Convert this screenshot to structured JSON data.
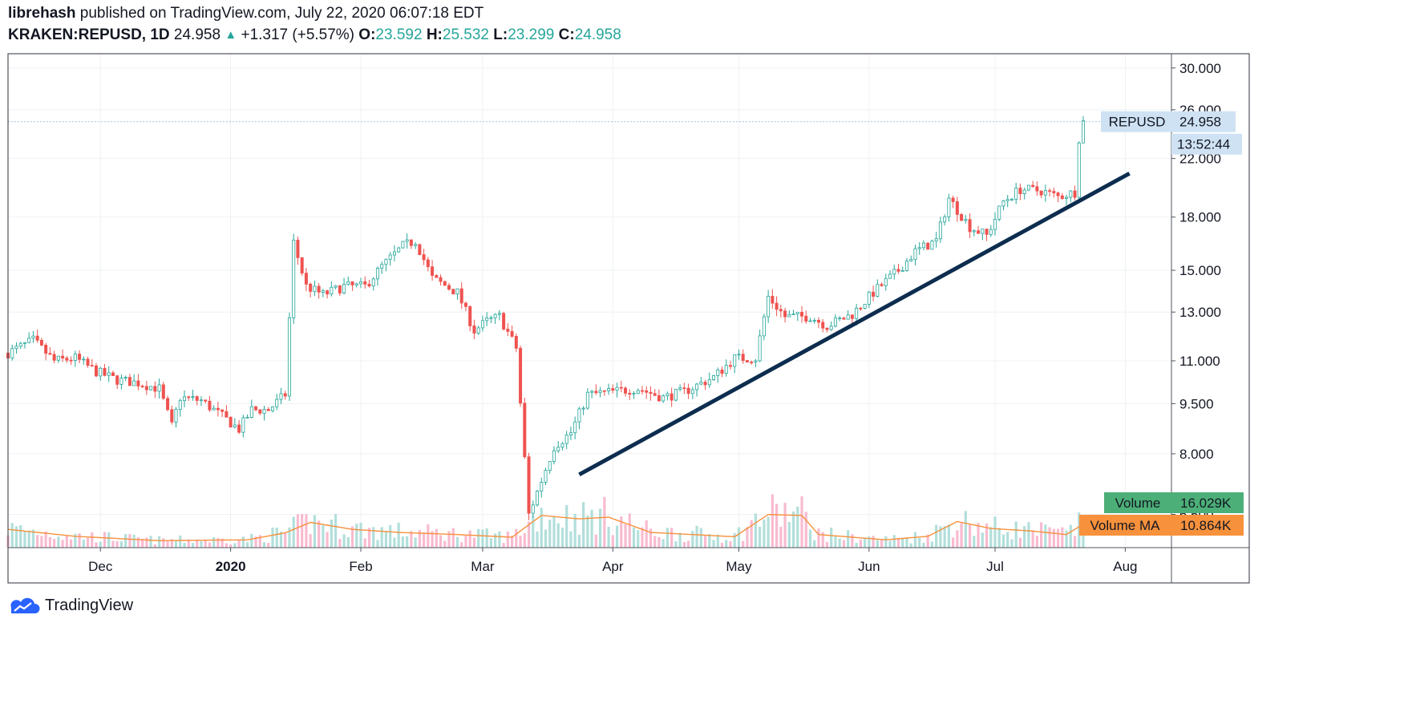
{
  "header": {
    "author": "librehash",
    "published_text": "published on TradingView.com, July 22, 2020 06:07:18 EDT",
    "symbol": "KRAKEN:REPUSD, 1D",
    "last": "24.958",
    "change": "+1.317 (+5.57%)",
    "open_label": "O:",
    "open": "23.592",
    "high_label": "H:",
    "high": "25.532",
    "low_label": "L:",
    "low": "23.299",
    "close_label": "C:",
    "close": "24.958"
  },
  "footer": {
    "brand": "TradingView",
    "brand_icon": "tradingview-cloud-icon"
  },
  "colors": {
    "up": "#26a69a",
    "down": "#ef5350",
    "vol_up": "#b2dfdb",
    "vol_down": "#f8bbd0",
    "ma": "#f7913c",
    "trend": "#0d2d4f",
    "label_bg": "#cfe2f3",
    "vol_label": "#4caf78",
    "ma_label": "#f7913c"
  },
  "chart_data": {
    "type": "candlestick",
    "symbol": "REPUSD",
    "timeframe": "1D",
    "x_range": [
      "2019-11-09",
      "2020-08-12"
    ],
    "y_scale": "log",
    "y_range": [
      5.8,
      31.5
    ],
    "y_ticks": [
      "30.000",
      "26.000",
      "22.000",
      "18.000",
      "15.000",
      "13.000",
      "11.000",
      "9.500",
      "8.000",
      "6.500"
    ],
    "x_ticks": [
      "Dec",
      "2020",
      "Feb",
      "Mar",
      "Apr",
      "May",
      "Jun",
      "Jul",
      "Aug"
    ],
    "price_label": {
      "name": "REPUSD",
      "value": "24.958",
      "countdown": "13:52:44"
    },
    "volume_labels": {
      "volume_name": "Volume",
      "volume_value": "16.029K",
      "ma_name": "Volume MA",
      "ma_value": "10.864K"
    },
    "grid": true,
    "series_close": [
      [
        "2019-11-09",
        11.3
      ],
      [
        "2019-11-15",
        11.8
      ],
      [
        "2019-11-20",
        11.0
      ],
      [
        "2019-11-25",
        11.1
      ],
      [
        "2019-11-30",
        10.6
      ],
      [
        "2019-12-05",
        10.3
      ],
      [
        "2019-12-10",
        10.2
      ],
      [
        "2019-12-15",
        10.0
      ],
      [
        "2019-12-18",
        8.8
      ],
      [
        "2019-12-20",
        9.7
      ],
      [
        "2019-12-25",
        9.6
      ],
      [
        "2019-12-30",
        9.1
      ],
      [
        "2020-01-03",
        8.7
      ],
      [
        "2020-01-06",
        9.3
      ],
      [
        "2020-01-10",
        9.3
      ],
      [
        "2020-01-14",
        9.8
      ],
      [
        "2020-01-16",
        16.5
      ],
      [
        "2020-01-19",
        14.2
      ],
      [
        "2020-01-23",
        13.8
      ],
      [
        "2020-01-28",
        14.2
      ],
      [
        "2020-02-02",
        14.2
      ],
      [
        "2020-02-06",
        15.2
      ],
      [
        "2020-02-11",
        16.3
      ],
      [
        "2020-02-14",
        16.6
      ],
      [
        "2020-02-18",
        14.6
      ],
      [
        "2020-02-24",
        13.9
      ],
      [
        "2020-02-28",
        12.2
      ],
      [
        "2020-03-02",
        12.6
      ],
      [
        "2020-03-05",
        12.8
      ],
      [
        "2020-03-09",
        11.5
      ],
      [
        "2020-03-12",
        6.5
      ],
      [
        "2020-03-15",
        7.3
      ],
      [
        "2020-03-18",
        8.2
      ],
      [
        "2020-03-22",
        8.6
      ],
      [
        "2020-03-26",
        9.8
      ],
      [
        "2020-04-01",
        9.9
      ],
      [
        "2020-04-07",
        10.0
      ],
      [
        "2020-04-13",
        9.7
      ],
      [
        "2020-04-18",
        9.9
      ],
      [
        "2020-04-25",
        10.4
      ],
      [
        "2020-04-30",
        11.1
      ],
      [
        "2020-05-05",
        11.1
      ],
      [
        "2020-05-08",
        13.7
      ],
      [
        "2020-05-12",
        12.8
      ],
      [
        "2020-05-18",
        12.8
      ],
      [
        "2020-05-22",
        12.4
      ],
      [
        "2020-05-28",
        12.9
      ],
      [
        "2020-06-02",
        13.9
      ],
      [
        "2020-06-08",
        15.0
      ],
      [
        "2020-06-12",
        16.0
      ],
      [
        "2020-06-17",
        16.6
      ],
      [
        "2020-06-20",
        19.2
      ],
      [
        "2020-06-25",
        17.4
      ],
      [
        "2020-06-29",
        16.9
      ],
      [
        "2020-07-03",
        19.0
      ],
      [
        "2020-07-07",
        19.8
      ],
      [
        "2020-07-12",
        19.7
      ],
      [
        "2020-07-16",
        19.3
      ],
      [
        "2020-07-20",
        19.6
      ],
      [
        "2020-07-21",
        23.6
      ],
      [
        "2020-07-22",
        24.958
      ]
    ],
    "volume_ma": [
      [
        "2019-11-09",
        4.2
      ],
      [
        "2019-11-25",
        2.6
      ],
      [
        "2019-12-15",
        1.6
      ],
      [
        "2020-01-05",
        1.8
      ],
      [
        "2020-01-14",
        3.4
      ],
      [
        "2020-01-20",
        5.8
      ],
      [
        "2020-01-30",
        4.2
      ],
      [
        "2020-02-10",
        3.5
      ],
      [
        "2020-02-24",
        3.0
      ],
      [
        "2020-03-08",
        2.4
      ],
      [
        "2020-03-15",
        7.4
      ],
      [
        "2020-03-24",
        6.6
      ],
      [
        "2020-03-31",
        7.0
      ],
      [
        "2020-04-10",
        3.5
      ],
      [
        "2020-04-30",
        2.5
      ],
      [
        "2020-05-08",
        7.6
      ],
      [
        "2020-05-16",
        7.4
      ],
      [
        "2020-05-20",
        3.0
      ],
      [
        "2020-06-05",
        1.8
      ],
      [
        "2020-06-15",
        2.6
      ],
      [
        "2020-06-22",
        6.0
      ],
      [
        "2020-06-30",
        4.4
      ],
      [
        "2020-07-10",
        3.8
      ],
      [
        "2020-07-18",
        3.0
      ],
      [
        "2020-07-22",
        5.4
      ]
    ],
    "trendline": {
      "from": [
        "2020-03-24",
        7.45
      ],
      "to": [
        "2020-08-02",
        20.9
      ]
    }
  }
}
